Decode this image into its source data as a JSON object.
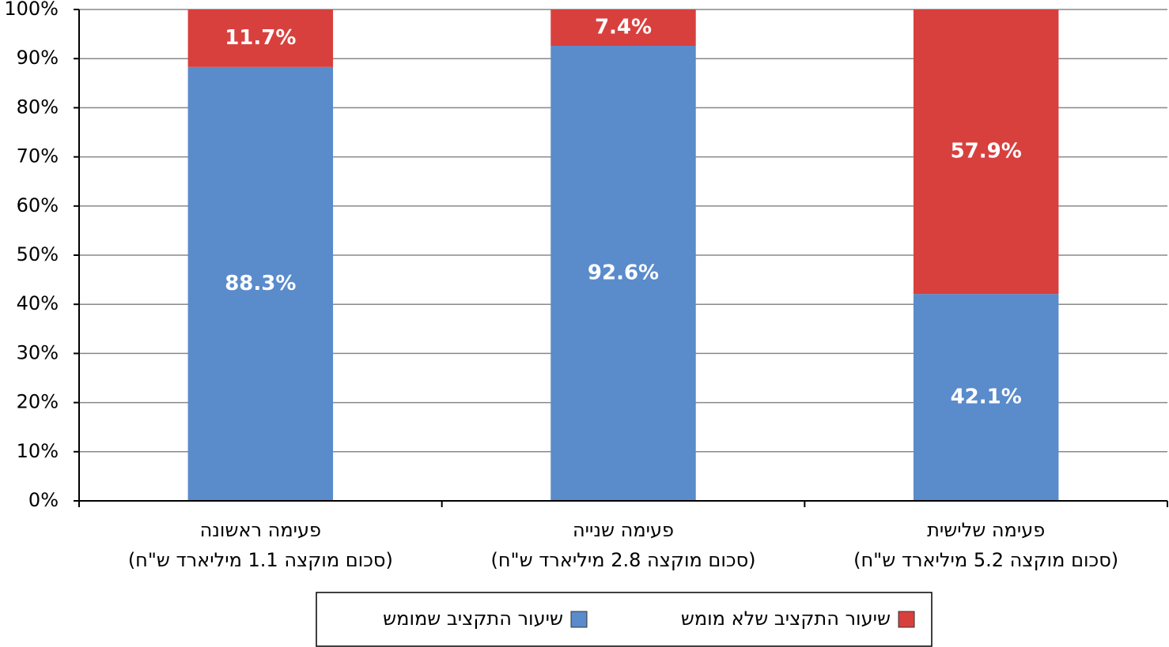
{
  "chart_data": {
    "type": "stacked_bar",
    "categories": [
      [
        "פעימה ראשונה",
        "(סכום מוקצה 1.1 מיליארד ש\"ח)"
      ],
      [
        "פעימה שנייה",
        "(סכום מוקצה 2.8 מיליארד ש\"ח)"
      ],
      [
        "פעימה שלישית",
        "(סכום מוקצה 5.2 מיליארד ש\"ח)"
      ]
    ],
    "series": [
      {
        "name": "שיעור התקציב שמומש",
        "color": "#5a8bcb",
        "values": [
          88.3,
          92.6,
          42.1
        ],
        "value_labels": [
          "88.3%",
          "92.6%",
          "42.1%"
        ]
      },
      {
        "name": "שיעור התקציב שלא מומש",
        "color": "#d8403d",
        "values": [
          11.7,
          7.4,
          57.9
        ],
        "value_labels": [
          "11.7%",
          "7.4%",
          "57.9%"
        ]
      }
    ],
    "ylim": [
      0,
      100
    ],
    "yticks": [
      {
        "value": 0,
        "label": "0%"
      },
      {
        "value": 10,
        "label": "10%"
      },
      {
        "value": 20,
        "label": "20%"
      },
      {
        "value": 30,
        "label": "30%"
      },
      {
        "value": 40,
        "label": "40%"
      },
      {
        "value": 50,
        "label": "50%"
      },
      {
        "value": 60,
        "label": "60%"
      },
      {
        "value": 70,
        "label": "70%"
      },
      {
        "value": 80,
        "label": "80%"
      },
      {
        "value": 90,
        "label": "90%"
      },
      {
        "value": 100,
        "label": "100%"
      }
    ],
    "grid": true,
    "legend": "bottom"
  }
}
